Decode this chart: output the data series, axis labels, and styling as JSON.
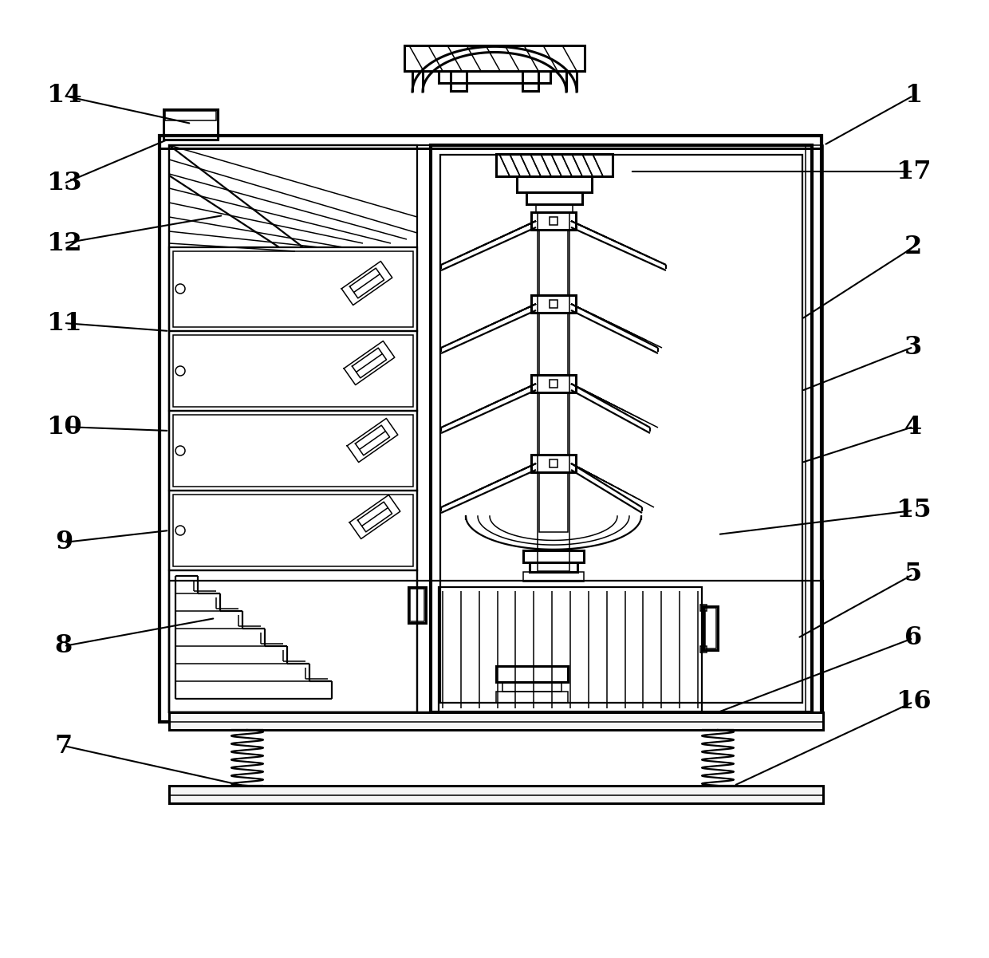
{
  "bg_color": "#ffffff",
  "line_color": "#000000",
  "fig_width": 12.4,
  "fig_height": 12.01
}
